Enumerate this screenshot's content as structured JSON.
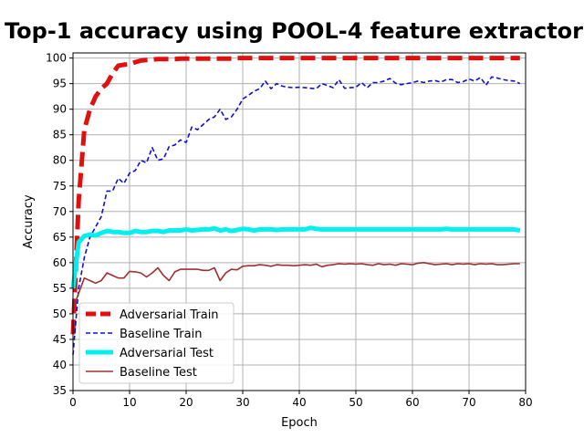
{
  "chart_data": {
    "type": "line",
    "title": "Top-1 accuracy using POOL-4 feature extractor",
    "xlabel": "Epoch",
    "ylabel": "Accuracy",
    "xlim": [
      0,
      80
    ],
    "ylim": [
      35,
      101
    ],
    "xticks": [
      0,
      10,
      20,
      30,
      40,
      50,
      60,
      70,
      80
    ],
    "yticks": [
      35,
      40,
      45,
      50,
      55,
      60,
      65,
      70,
      75,
      80,
      85,
      90,
      95,
      100
    ],
    "grid": true,
    "legend_position": "lower-left",
    "x": [
      0,
      1,
      2,
      3,
      4,
      5,
      6,
      7,
      8,
      9,
      10,
      11,
      12,
      13,
      14,
      15,
      16,
      17,
      18,
      19,
      20,
      21,
      22,
      23,
      24,
      25,
      26,
      27,
      28,
      29,
      30,
      31,
      32,
      33,
      34,
      35,
      36,
      37,
      38,
      39,
      40,
      41,
      42,
      43,
      44,
      45,
      46,
      47,
      48,
      49,
      50,
      51,
      52,
      53,
      54,
      55,
      56,
      57,
      58,
      59,
      60,
      61,
      62,
      63,
      64,
      65,
      66,
      67,
      68,
      69,
      70,
      71,
      72,
      73,
      74,
      75,
      76,
      77,
      78,
      79
    ],
    "series": [
      {
        "name": "Adversarial Train",
        "color": "#e01010",
        "style": "dashed",
        "width": 5,
        "values": [
          46,
          72,
          86,
          90,
          92.5,
          94,
          95,
          97,
          98.5,
          98.7,
          98.8,
          99.2,
          99.5,
          99.6,
          99.7,
          99.8,
          99.8,
          99.8,
          99.8,
          99.9,
          99.9,
          99.9,
          99.9,
          99.9,
          99.9,
          99.9,
          99.9,
          99.9,
          99.9,
          100,
          100,
          100,
          100,
          100,
          100,
          100,
          100,
          100,
          100,
          100,
          100,
          100,
          100,
          100,
          100,
          100,
          100,
          100,
          100,
          100,
          100,
          100,
          100,
          100,
          100,
          100,
          100,
          100,
          100,
          100,
          100,
          100,
          100,
          100,
          100,
          100,
          100,
          100,
          100,
          100,
          100,
          100,
          100,
          100,
          100,
          100,
          100,
          100,
          100,
          100
        ]
      },
      {
        "name": "Baseline Train",
        "color": "#1010c8",
        "style": "dashed",
        "width": 1.6,
        "values": [
          42,
          55,
          61,
          65,
          67,
          69,
          74,
          74,
          76.5,
          75.5,
          77.5,
          78,
          80,
          79.5,
          82.5,
          80,
          80.3,
          82.7,
          83,
          84,
          83.5,
          86.5,
          86,
          87,
          88,
          88.5,
          90,
          88,
          88.5,
          90,
          92,
          92.7,
          93.5,
          94,
          95.5,
          94,
          95,
          94.5,
          94.3,
          94.2,
          94.3,
          94.2,
          94.1,
          94,
          95,
          94.6,
          94.2,
          95.8,
          94.1,
          94.2,
          94.3,
          95.2,
          94.2,
          95.2,
          95.2,
          95.5,
          96,
          95.1,
          94.8,
          95,
          95.2,
          95.5,
          95.2,
          95.5,
          95.6,
          95.3,
          95.8,
          95.8,
          95.2,
          95.4,
          95.9,
          95.5,
          96.2,
          94.7,
          96.3,
          96.1,
          95.8,
          95.6,
          95.5,
          95
        ]
      },
      {
        "name": "Adversarial Test",
        "color": "#00f0f0",
        "style": "solid",
        "width": 5,
        "values": [
          55,
          64,
          65.2,
          65.5,
          65.3,
          65.8,
          66.2,
          66,
          66,
          65.8,
          65.8,
          66.2,
          66,
          66,
          66.2,
          66.2,
          66,
          66.3,
          66.3,
          66.3,
          66.5,
          66.3,
          66.4,
          66.5,
          66.5,
          66.7,
          66.3,
          66.5,
          66.2,
          66.4,
          66.6,
          66.5,
          66.3,
          66.5,
          66.5,
          66.5,
          66.4,
          66.5,
          66.5,
          66.5,
          66.5,
          66.5,
          66.8,
          66.6,
          66.5,
          66.5,
          66.5,
          66.5,
          66.5,
          66.5,
          66.5,
          66.5,
          66.5,
          66.5,
          66.5,
          66.5,
          66.5,
          66.5,
          66.5,
          66.5,
          66.5,
          66.5,
          66.5,
          66.5,
          66.5,
          66.5,
          66.6,
          66.5,
          66.5,
          66.5,
          66.5,
          66.5,
          66.5,
          66.5,
          66.5,
          66.5,
          66.5,
          66.5,
          66.5,
          66.3
        ]
      },
      {
        "name": "Baseline Test",
        "color": "#a03030",
        "style": "solid",
        "width": 1.6,
        "values": [
          51,
          54,
          57,
          56.5,
          56,
          56.5,
          58,
          57.5,
          57,
          57,
          58.3,
          58.2,
          58,
          57.2,
          58,
          59,
          57.5,
          56.5,
          58.2,
          58.7,
          58.7,
          58.7,
          58.7,
          58.5,
          58.5,
          59,
          56.5,
          58,
          58.7,
          58.6,
          59.3,
          59.4,
          59.4,
          59.6,
          59.5,
          59.3,
          59.6,
          59.5,
          59.5,
          59.4,
          59.5,
          59.6,
          59.5,
          59.7,
          59.2,
          59.5,
          59.6,
          59.8,
          59.7,
          59.8,
          59.7,
          59.8,
          59.6,
          59.5,
          59.8,
          59.6,
          59.7,
          59.5,
          59.8,
          59.7,
          59.6,
          59.9,
          60,
          59.8,
          59.6,
          59.7,
          59.8,
          59.6,
          59.8,
          59.7,
          59.8,
          59.6,
          59.8,
          59.7,
          59.8,
          59.6,
          59.6,
          59.7,
          59.8,
          59.8
        ]
      }
    ]
  }
}
